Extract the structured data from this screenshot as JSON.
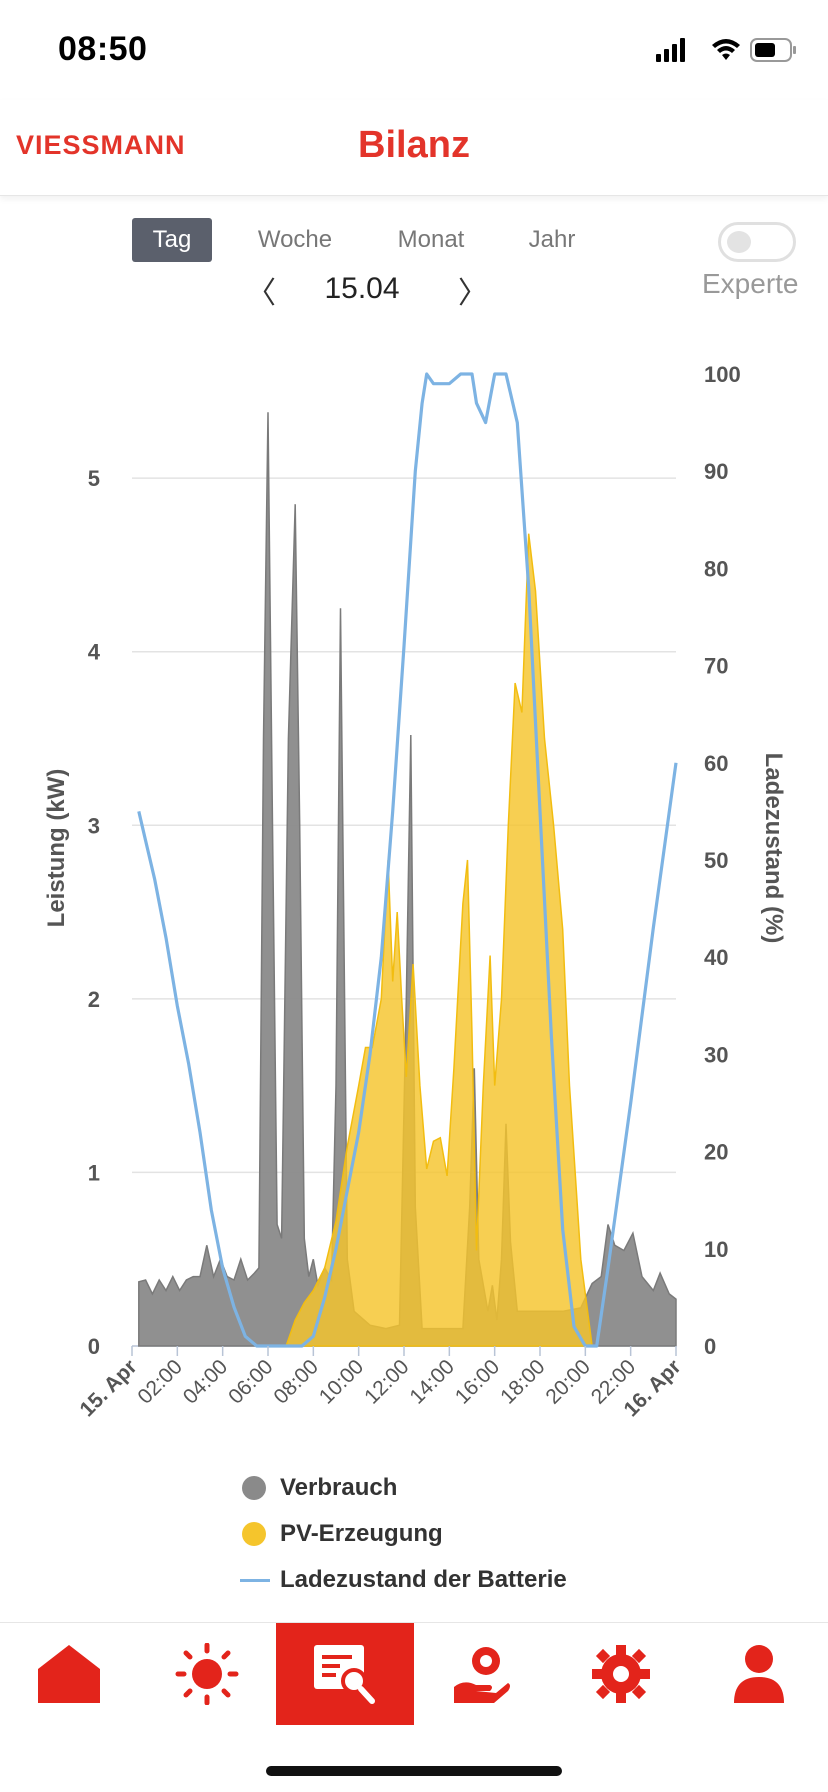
{
  "status_bar": {
    "time": "08:50"
  },
  "header": {
    "brand": "VIESSMANN",
    "title": "Bilanz"
  },
  "period_tabs": [
    {
      "label": "Tag",
      "active": true
    },
    {
      "label": "Woche",
      "active": false
    },
    {
      "label": "Monat",
      "active": false
    },
    {
      "label": "Jahr",
      "active": false
    }
  ],
  "date_nav": {
    "prev": "〈",
    "value": "15.04",
    "next": "〉"
  },
  "expert_toggle": {
    "label": "Experte",
    "on": false
  },
  "colors": {
    "accent": "#e3241b",
    "consumption": "#8a8a8a",
    "pv": "#f5c52c",
    "battery": "#7db3e3"
  },
  "chart_data": {
    "type": "area",
    "x_unit": "hour",
    "x_ticks": [
      "15. Apr",
      "02:00",
      "04:00",
      "06:00",
      "08:00",
      "10:00",
      "12:00",
      "14:00",
      "16:00",
      "18:00",
      "20:00",
      "22:00",
      "16. Apr"
    ],
    "y_left": {
      "label": "Leistung (kW)",
      "range": [
        0,
        5.6
      ],
      "ticks": [
        0,
        1,
        2,
        3,
        4,
        5
      ]
    },
    "y_right": {
      "label": "Ladezustand (%)",
      "range": [
        0,
        100
      ],
      "ticks": [
        0,
        10,
        20,
        30,
        40,
        50,
        60,
        70,
        80,
        90,
        100
      ]
    },
    "grid": true,
    "legend_position": "bottom",
    "series": [
      {
        "name": "Verbrauch",
        "axis": "left",
        "kind": "area",
        "points": [
          [
            0.3,
            0.37
          ],
          [
            0.6,
            0.38
          ],
          [
            0.9,
            0.3
          ],
          [
            1.2,
            0.38
          ],
          [
            1.5,
            0.32
          ],
          [
            1.8,
            0.4
          ],
          [
            2.1,
            0.32
          ],
          [
            2.4,
            0.38
          ],
          [
            2.7,
            0.4
          ],
          [
            3,
            0.4
          ],
          [
            3.3,
            0.58
          ],
          [
            3.6,
            0.4
          ],
          [
            3.9,
            0.5
          ],
          [
            4.2,
            0.4
          ],
          [
            4.5,
            0.38
          ],
          [
            4.8,
            0.5
          ],
          [
            5.1,
            0.38
          ],
          [
            5.4,
            0.42
          ],
          [
            5.6,
            0.45
          ],
          [
            5.8,
            3.5
          ],
          [
            6.0,
            5.38
          ],
          [
            6.2,
            3.0
          ],
          [
            6.4,
            0.7
          ],
          [
            6.6,
            0.62
          ],
          [
            6.9,
            3.5
          ],
          [
            7.2,
            4.85
          ],
          [
            7.4,
            3.0
          ],
          [
            7.6,
            0.62
          ],
          [
            7.8,
            0.4
          ],
          [
            8.0,
            0.5
          ],
          [
            8.2,
            0.35
          ],
          [
            8.5,
            0.45
          ],
          [
            8.8,
            0.38
          ],
          [
            9.0,
            1.5
          ],
          [
            9.2,
            4.25
          ],
          [
            9.5,
            0.5
          ],
          [
            9.8,
            0.2
          ],
          [
            10.5,
            0.12
          ],
          [
            11.2,
            0.1
          ],
          [
            11.8,
            0.12
          ],
          [
            12.1,
            2.0
          ],
          [
            12.3,
            3.52
          ],
          [
            12.5,
            0.8
          ],
          [
            12.8,
            0.1
          ],
          [
            14,
            0.1
          ],
          [
            14.6,
            0.1
          ],
          [
            14.9,
            0.8
          ],
          [
            15.1,
            1.6
          ],
          [
            15.3,
            0.5
          ],
          [
            15.7,
            0.2
          ],
          [
            15.9,
            0.35
          ],
          [
            16.1,
            0.15
          ],
          [
            16.3,
            0.5
          ],
          [
            16.5,
            1.28
          ],
          [
            16.7,
            0.6
          ],
          [
            17.0,
            0.2
          ],
          [
            18,
            0.2
          ],
          [
            19,
            0.2
          ],
          [
            19.8,
            0.22
          ],
          [
            20.3,
            0.36
          ],
          [
            20.7,
            0.4
          ],
          [
            21.0,
            0.7
          ],
          [
            21.3,
            0.58
          ],
          [
            21.7,
            0.55
          ],
          [
            22.1,
            0.65
          ],
          [
            22.5,
            0.4
          ],
          [
            23.0,
            0.32
          ],
          [
            23.3,
            0.42
          ],
          [
            23.7,
            0.3
          ],
          [
            24.0,
            0.27
          ]
        ]
      },
      {
        "name": "PV-Erzeugung",
        "axis": "left",
        "kind": "area",
        "points": [
          [
            6.8,
            0
          ],
          [
            7.2,
            0.15
          ],
          [
            7.6,
            0.25
          ],
          [
            8.0,
            0.32
          ],
          [
            8.5,
            0.45
          ],
          [
            9.0,
            0.72
          ],
          [
            9.5,
            1.15
          ],
          [
            10.0,
            1.5
          ],
          [
            10.3,
            1.72
          ],
          [
            10.6,
            1.72
          ],
          [
            11.0,
            2.0
          ],
          [
            11.3,
            2.8
          ],
          [
            11.5,
            2.1
          ],
          [
            11.7,
            2.5
          ],
          [
            11.9,
            2.0
          ],
          [
            12.1,
            1.55
          ],
          [
            12.4,
            2.2
          ],
          [
            12.7,
            1.5
          ],
          [
            13.0,
            1.02
          ],
          [
            13.3,
            1.18
          ],
          [
            13.6,
            1.2
          ],
          [
            13.9,
            0.98
          ],
          [
            14.2,
            1.6
          ],
          [
            14.6,
            2.55
          ],
          [
            14.8,
            2.8
          ],
          [
            15.0,
            1.8
          ],
          [
            15.2,
            0.55
          ],
          [
            15.5,
            1.5
          ],
          [
            15.8,
            2.25
          ],
          [
            16.0,
            1.5
          ],
          [
            16.3,
            2.0
          ],
          [
            16.6,
            3.0
          ],
          [
            16.9,
            3.82
          ],
          [
            17.2,
            3.65
          ],
          [
            17.5,
            4.68
          ],
          [
            17.8,
            4.35
          ],
          [
            18.2,
            3.5
          ],
          [
            18.6,
            3.0
          ],
          [
            19.0,
            2.4
          ],
          [
            19.3,
            1.5
          ],
          [
            19.6,
            0.9
          ],
          [
            19.8,
            0.5
          ],
          [
            20.0,
            0.3
          ],
          [
            20.3,
            0
          ]
        ]
      },
      {
        "name": "Ladezustand der Batterie",
        "axis": "right",
        "kind": "line",
        "points": [
          [
            0.3,
            55
          ],
          [
            0.6,
            52
          ],
          [
            1.0,
            48
          ],
          [
            1.5,
            42
          ],
          [
            2.0,
            35
          ],
          [
            2.5,
            29
          ],
          [
            3.0,
            22
          ],
          [
            3.5,
            14
          ],
          [
            4.0,
            8
          ],
          [
            4.5,
            4
          ],
          [
            5.0,
            1
          ],
          [
            5.5,
            0
          ],
          [
            6.0,
            0
          ],
          [
            6.5,
            0
          ],
          [
            7.0,
            0
          ],
          [
            7.5,
            0
          ],
          [
            8.0,
            1
          ],
          [
            8.5,
            5
          ],
          [
            9.0,
            10
          ],
          [
            9.5,
            16
          ],
          [
            10.0,
            22
          ],
          [
            10.5,
            30
          ],
          [
            11.0,
            40
          ],
          [
            11.5,
            55
          ],
          [
            12.0,
            72
          ],
          [
            12.5,
            90
          ],
          [
            12.8,
            97
          ],
          [
            13.0,
            100
          ],
          [
            13.3,
            99
          ],
          [
            14.0,
            99
          ],
          [
            14.5,
            100
          ],
          [
            15.0,
            100
          ],
          [
            15.2,
            97
          ],
          [
            15.6,
            95
          ],
          [
            16.0,
            100
          ],
          [
            16.5,
            100
          ],
          [
            17.0,
            95
          ],
          [
            17.5,
            78
          ],
          [
            18.0,
            55
          ],
          [
            18.5,
            32
          ],
          [
            19.0,
            12
          ],
          [
            19.5,
            2
          ],
          [
            20.0,
            0
          ],
          [
            20.5,
            0
          ],
          [
            21.0,
            8
          ],
          [
            22.0,
            25
          ],
          [
            23.0,
            43
          ],
          [
            24.0,
            60
          ]
        ]
      }
    ]
  },
  "legend": [
    {
      "label": "Verbrauch",
      "color": "#8a8a8a",
      "marker": "dot"
    },
    {
      "label": "PV-Erzeugung",
      "color": "#f5c52c",
      "marker": "dot"
    },
    {
      "label": "Ladezustand der Batterie",
      "color": "#7db3e3",
      "marker": "line"
    }
  ],
  "bottom_nav": [
    {
      "icon": "home-icon",
      "active": false
    },
    {
      "icon": "sun-icon",
      "active": false
    },
    {
      "icon": "report-search-icon",
      "active": true
    },
    {
      "icon": "hand-coin-icon",
      "active": false
    },
    {
      "icon": "gear-icon",
      "active": false
    },
    {
      "icon": "user-icon",
      "active": false
    }
  ]
}
